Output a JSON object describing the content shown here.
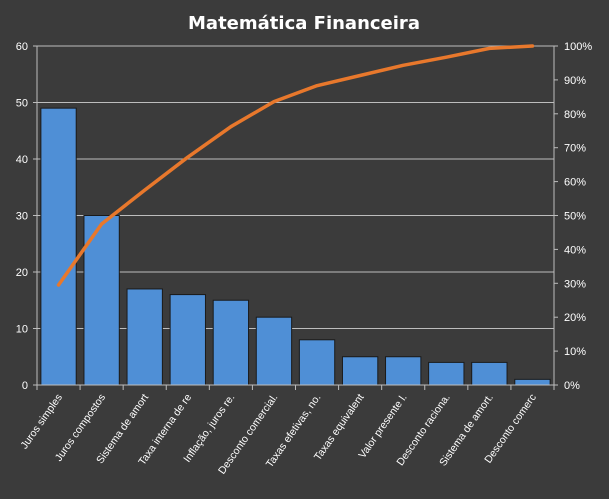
{
  "chart_data": {
    "type": "bar",
    "title": "Matemática  Financeira",
    "categories": [
      "Juros simples",
      "Juros compostos",
      "Sistema de amort",
      "Taxa interna de re",
      "Inflação, juros re.",
      "Desconto comercial.",
      "Taxas efetivas, no.",
      "Taxas equivalent",
      "Valor presente l.",
      "Desconto raciona.",
      "Sistema de amort.",
      "Desconto comerc"
    ],
    "series": [
      {
        "type": "bar",
        "values": [
          49,
          30,
          17,
          16,
          15,
          12,
          8,
          5,
          5,
          4,
          4,
          1
        ]
      },
      {
        "type": "line",
        "axis": "secondary",
        "values": [
          29.5,
          47.5,
          57.5,
          67.2,
          76.2,
          83.6,
          88.3,
          91.3,
          94.3,
          96.7,
          99.3,
          100
        ]
      }
    ],
    "ylim": [
      0,
      60
    ],
    "yticks": [
      "0",
      "10",
      "20",
      "30",
      "40",
      "50",
      "60"
    ],
    "y2lim": [
      0,
      100
    ],
    "y2ticks": [
      "0%",
      "10%",
      "20%",
      "30%",
      "40%",
      "50%",
      "60%",
      "70%",
      "80%",
      "90%",
      "100%"
    ],
    "grid": true,
    "legend": "none",
    "colors": {
      "background": "#3b3b3b",
      "bar": "#4f8fd6",
      "bar_edge": "#1a1a1a",
      "line": "#e8782c",
      "grid": "#bdbdbd",
      "text": "#ffffff"
    }
  }
}
